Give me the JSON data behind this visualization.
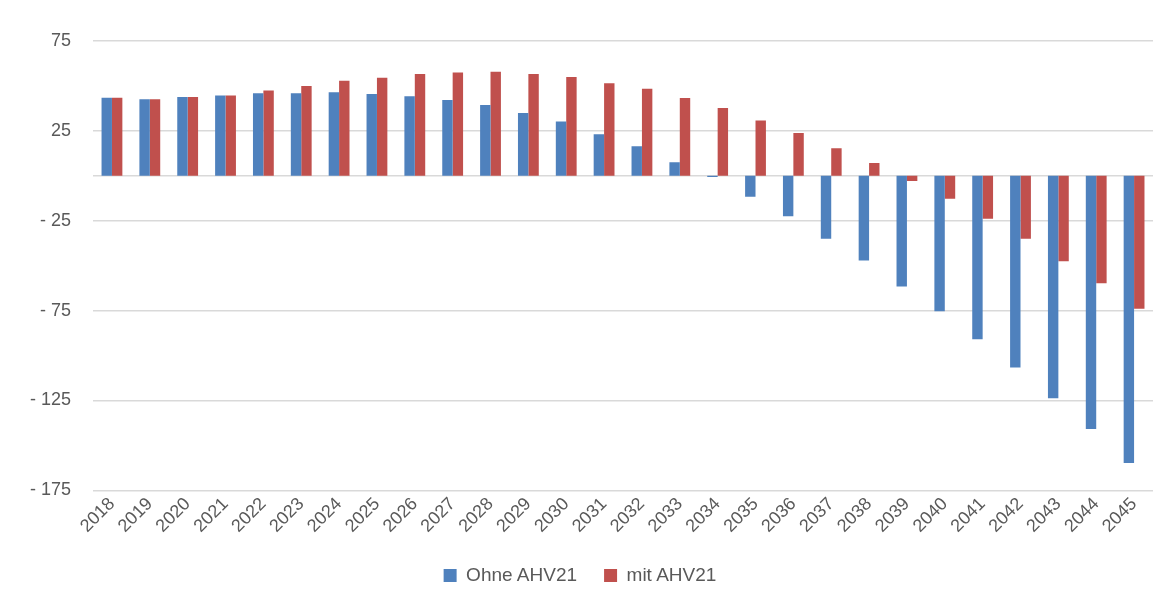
{
  "chart_data": {
    "type": "bar",
    "categories": [
      "2018",
      "2019",
      "2020",
      "2021",
      "2022",
      "2023",
      "2024",
      "2025",
      "2026",
      "2027",
      "2028",
      "2029",
      "2030",
      "2031",
      "2032",
      "2033",
      "2034",
      "2035",
      "2036",
      "2037",
      "2038",
      "2039",
      "2040",
      "2041",
      "2042",
      "2043",
      "2044",
      "2045"
    ],
    "series": [
      {
        "name": "Ohne AHV21",
        "color": "#4f81bd",
        "values": [
          43.3,
          42.5,
          43.8,
          44.6,
          45.8,
          45.8,
          46.4,
          45.4,
          44.2,
          42.1,
          39.3,
          34.9,
          30.1,
          23.0,
          16.3,
          7.5,
          -0.8,
          -11.7,
          -22.5,
          -35,
          -47.2,
          -61.6,
          -75.4,
          -91.0,
          -106.6,
          -123.7,
          -140.9,
          -159.8
        ]
      },
      {
        "name": "mit AHV21",
        "color": "#c0504d",
        "values": [
          43.3,
          42.5,
          43.8,
          44.6,
          47.3,
          49.8,
          52.8,
          54.5,
          56.6,
          57.4,
          57.8,
          56.6,
          54.9,
          51.4,
          48.3,
          43.2,
          37.7,
          30.7,
          23.8,
          15.3,
          7.0,
          -3.0,
          -12.8,
          -23.9,
          -35,
          -47.6,
          -59.8,
          -74
        ]
      }
    ],
    "ylim": [
      -175,
      75
    ],
    "yticks": [
      {
        "value": -175,
        "label": "- 175"
      },
      {
        "value": -125,
        "label": "- 125"
      },
      {
        "value": -75,
        "label": "- 75"
      },
      {
        "value": -25,
        "label": "- 25"
      },
      25,
      75
    ],
    "ref_lines": [
      {
        "axis": "y",
        "value": 0,
        "color": "#d9d9d9"
      }
    ],
    "grid": "y",
    "legend": "bottom"
  }
}
